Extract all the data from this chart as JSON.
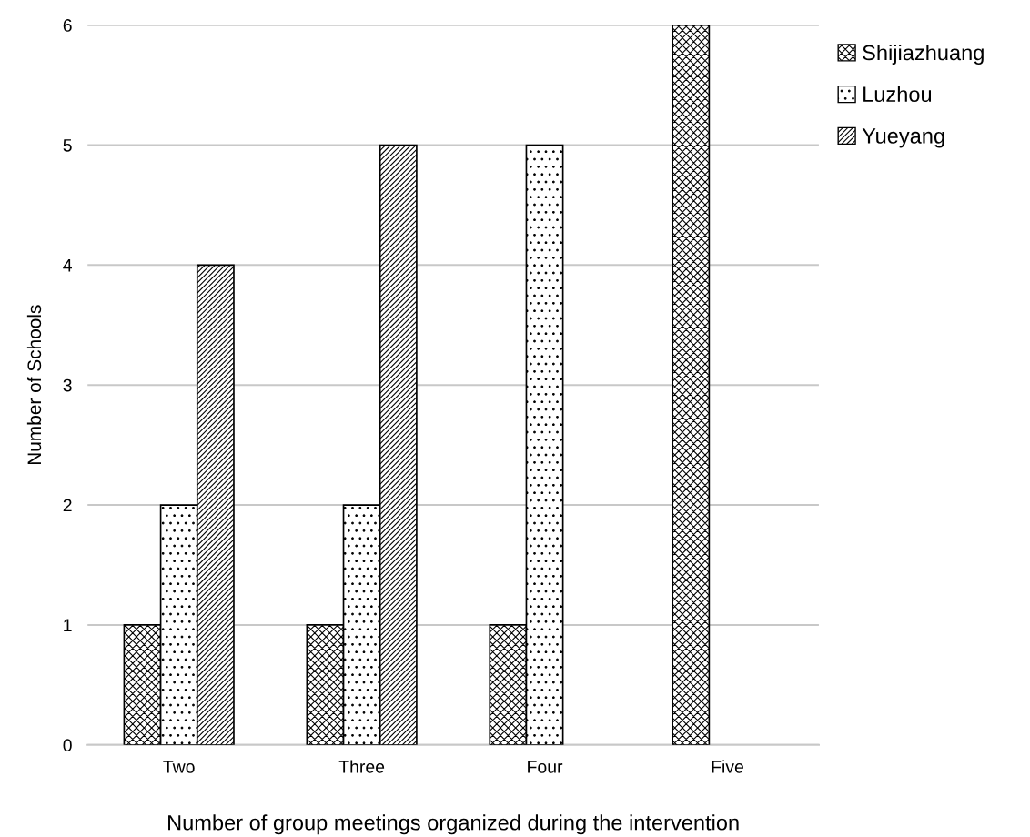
{
  "chart_data": {
    "type": "bar",
    "xlabel": "Number of group meetings organized during the intervention",
    "ylabel": "Number of Schools",
    "categories": [
      "Two",
      "Three",
      "Four",
      "Five"
    ],
    "series": [
      {
        "name": "Shijiazhuang",
        "color": "#000000",
        "values": [
          1,
          1,
          1,
          6
        ]
      },
      {
        "name": "Luzhou",
        "color": "#000000",
        "values": [
          2,
          2,
          5,
          null
        ]
      },
      {
        "name": "Yueyang",
        "color": "#000000",
        "values": [
          4,
          5,
          null,
          null
        ]
      }
    ],
    "ylim": [
      0,
      6
    ],
    "yticks": [
      0,
      1,
      2,
      3,
      4,
      5,
      6
    ],
    "grid": "y",
    "legend": "top right"
  }
}
